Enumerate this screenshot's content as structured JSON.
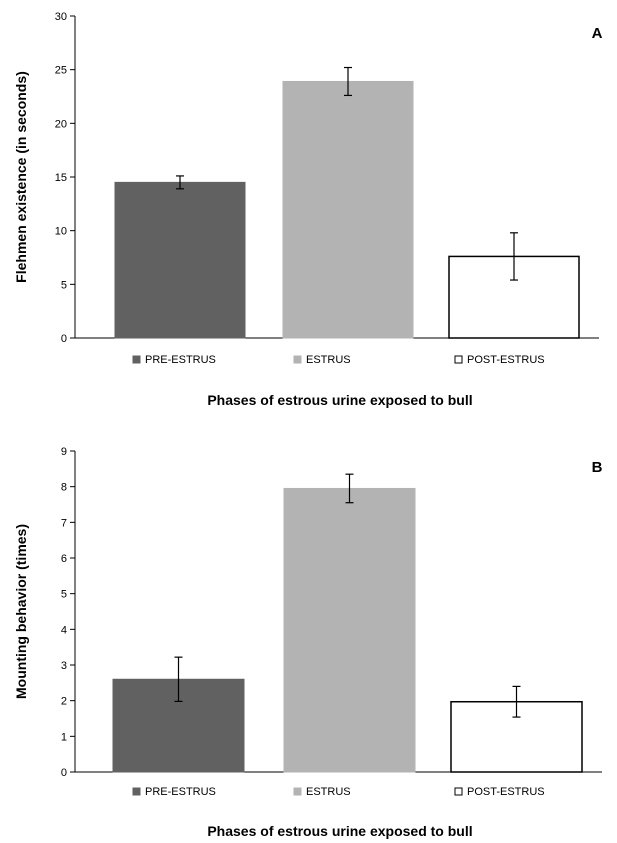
{
  "chart_data": [
    {
      "type": "bar",
      "panel_label": "A",
      "categories": [
        "PRE-ESTRUS",
        "ESTRUS",
        "POST-ESTRUS"
      ],
      "values": [
        14.5,
        23.9,
        7.6
      ],
      "error": [
        0.6,
        1.3,
        2.2
      ],
      "colors": [
        "#616161",
        "#b3b3b3",
        "#ffffff"
      ],
      "xlabel": "Phases of estrous urine exposed to bull",
      "ylabel": "Flehmen existence (in seconds)",
      "ylim": [
        0,
        30
      ],
      "yticks": [
        0,
        5,
        10,
        15,
        20,
        25,
        30
      ],
      "grid": false,
      "legend_position": "bottom"
    },
    {
      "type": "bar",
      "panel_label": "B",
      "categories": [
        "PRE-ESTRUS",
        "ESTRUS",
        "POST-ESTRUS"
      ],
      "values": [
        2.6,
        7.95,
        1.97
      ],
      "error": [
        0.62,
        0.4,
        0.43
      ],
      "colors": [
        "#616161",
        "#b3b3b3",
        "#ffffff"
      ],
      "xlabel": "Phases of estrous urine exposed to bull",
      "ylabel": "Mounting behavior (times)",
      "ylim": [
        0,
        9
      ],
      "yticks": [
        0,
        1,
        2,
        3,
        4,
        5,
        6,
        7,
        8,
        9
      ],
      "grid": false,
      "legend_position": "bottom"
    }
  ]
}
